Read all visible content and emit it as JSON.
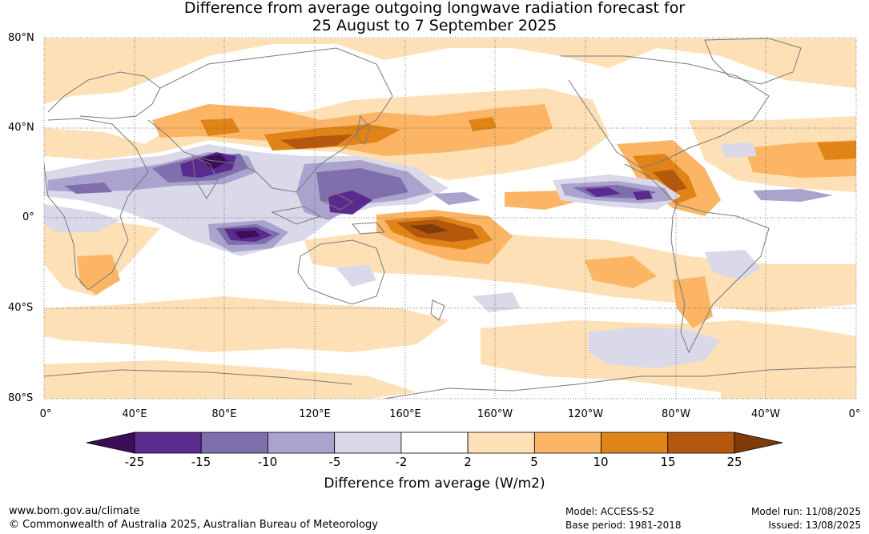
{
  "title": {
    "line1": "Difference from average outgoing longwave radiation forecast for",
    "line2": "25 August to 7 September 2025"
  },
  "map": {
    "lat_labels": [
      "80°N",
      "40°N",
      "0°",
      "40°S",
      "80°S"
    ],
    "lon_labels": [
      "0°",
      "40°E",
      "80°E",
      "120°E",
      "160°E",
      "160°W",
      "120°W",
      "80°W",
      "40°W",
      "0°"
    ],
    "ocean_color": "#ffffff",
    "coast_color": "#7a7a7a",
    "grid_style": "dotted"
  },
  "colorbar": {
    "colors": [
      "#3b0f57",
      "#5b2a8f",
      "#7f6fad",
      "#a9a3ce",
      "#d9d9ea",
      "#ffffff",
      "#fde0b6",
      "#fbb565",
      "#e08418",
      "#b3580d",
      "#7f3b08"
    ],
    "tick_labels": [
      "-25",
      "-15",
      "-10",
      "-5",
      "-2",
      "2",
      "5",
      "10",
      "15",
      "25"
    ],
    "unit_label": "Difference from average (W/m2)"
  },
  "footer": {
    "website": "www.bom.gov.au/climate",
    "copyright": "© Commonwealth of Australia 2025, Australian Bureau of Meteorology",
    "model": "Model: ACCESS-S2",
    "base_period": "Base period: 1981-2018",
    "model_run": "Model run: 11/08/2025",
    "issued": "Issued: 13/08/2025"
  }
}
